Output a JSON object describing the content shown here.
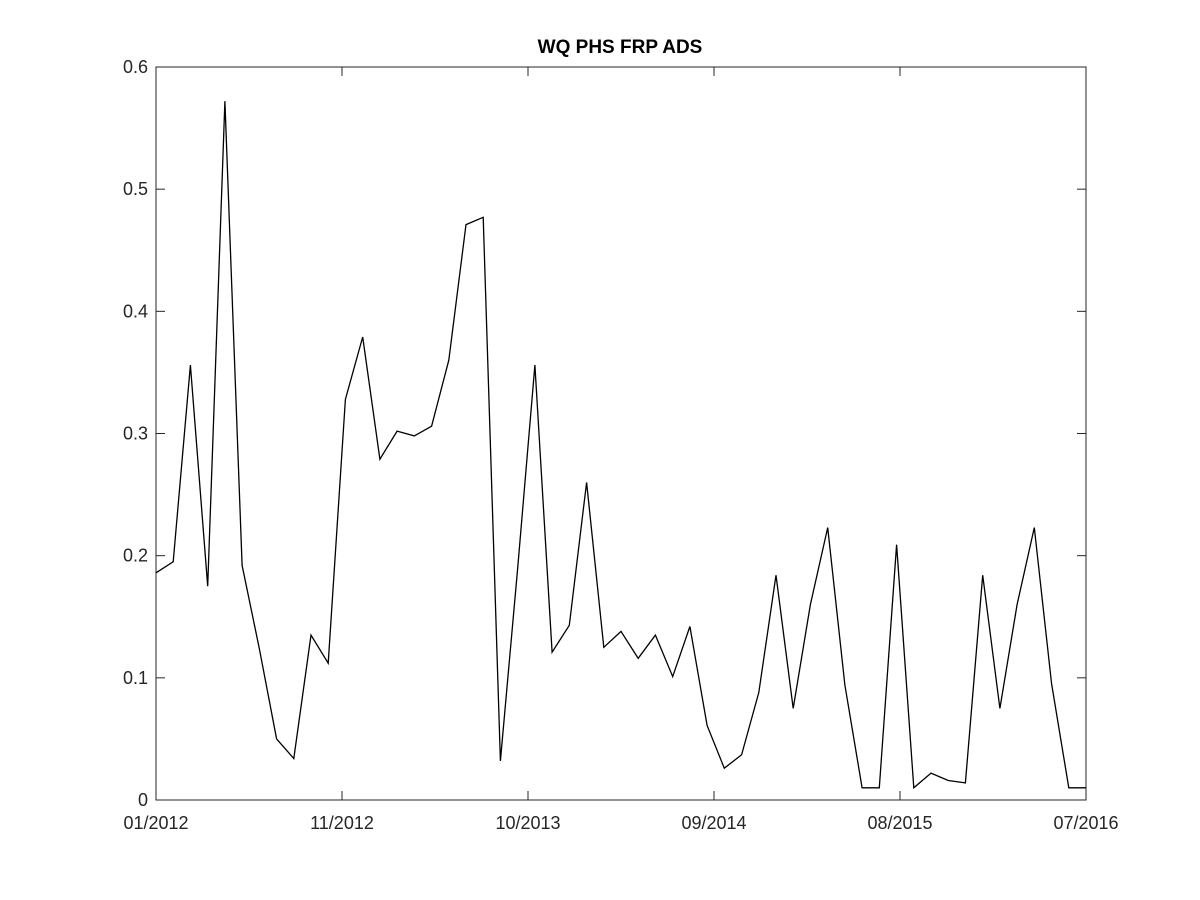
{
  "chart_data": {
    "type": "line",
    "title": "WQ PHS FRP ADS",
    "xlabel": "",
    "ylabel": "",
    "x_ticks": [
      "01/2012",
      "11/2012",
      "10/2013",
      "09/2014",
      "08/2015",
      "07/2016"
    ],
    "y_ticks": [
      "0",
      "0.1",
      "0.2",
      "0.3",
      "0.4",
      "0.5",
      "0.6"
    ],
    "ylim": [
      0,
      0.6
    ],
    "xlim": [
      0,
      54
    ],
    "grid": false,
    "line_color": "#000000",
    "series": [
      {
        "x": [
          0,
          1,
          2,
          3,
          4,
          5,
          6,
          7,
          8,
          9,
          10,
          11,
          12,
          13,
          14,
          15,
          16,
          17,
          18,
          19,
          20,
          21,
          22,
          23,
          24,
          25,
          26,
          27,
          28,
          29,
          30,
          31,
          32,
          33,
          34,
          35,
          36,
          37,
          38,
          39,
          40,
          41,
          42,
          43,
          44,
          45,
          46,
          47,
          48,
          49,
          50,
          51,
          52,
          53,
          54
        ],
        "values": [
          0.186,
          0.195,
          0.356,
          0.175,
          0.572,
          0.192,
          0.124,
          0.05,
          0.034,
          0.135,
          0.112,
          0.328,
          0.379,
          0.279,
          0.302,
          0.298,
          0.306,
          0.36,
          0.471,
          0.477,
          0.032,
          0.19,
          0.356,
          0.121,
          0.143,
          0.26,
          0.125,
          0.138,
          0.116,
          0.135,
          0.101,
          0.142,
          0.061,
          0.026,
          0.037,
          0.088,
          0.184,
          0.075,
          0.16,
          0.223,
          0.094,
          0.01,
          0.01,
          0.209,
          0.01,
          0.022,
          0.016,
          0.014,
          0.184,
          0.075,
          0.16,
          0.223,
          0.095,
          0.01,
          0.01
        ]
      }
    ]
  }
}
